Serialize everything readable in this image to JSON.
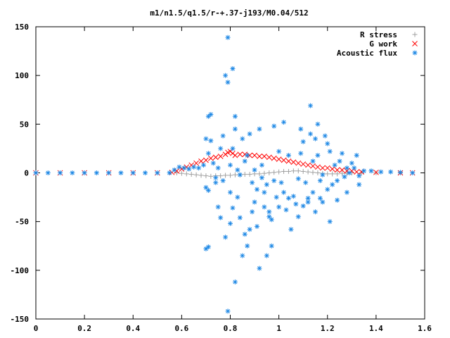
{
  "chart_data": {
    "type": "scatter",
    "title": "m1/n1.5/q1.5/r-+.37-j193/M0.04/512",
    "xlabel": "",
    "ylabel": "",
    "xlim": [
      0,
      1.6
    ],
    "ylim": [
      -150,
      150
    ],
    "x_ticks": [
      "0",
      "0.2",
      "0.4",
      "0.6",
      "0.8",
      "1",
      "1.2",
      "1.4",
      "1.6"
    ],
    "y_ticks": [
      "150",
      "100",
      "50",
      "0",
      "-50",
      "-100",
      "-150"
    ],
    "grid": false,
    "legend_position": "top-right",
    "series": [
      {
        "name": "R stress",
        "marker": "plus",
        "color": "#a0a0a0",
        "points": [
          [
            0.58,
            0
          ],
          [
            0.6,
            -0.5
          ],
          [
            0.62,
            -1
          ],
          [
            0.64,
            -1.5
          ],
          [
            0.66,
            -2
          ],
          [
            0.68,
            -2.5
          ],
          [
            0.7,
            -3
          ],
          [
            0.72,
            -3.5
          ],
          [
            0.74,
            -3
          ],
          [
            0.76,
            -3
          ],
          [
            0.78,
            -2.5
          ],
          [
            0.8,
            -2.5
          ],
          [
            0.82,
            -2
          ],
          [
            0.84,
            -2
          ],
          [
            0.86,
            -1.5
          ],
          [
            0.88,
            -1.5
          ],
          [
            0.9,
            -1
          ],
          [
            0.92,
            -1
          ],
          [
            0.94,
            -0.5
          ],
          [
            0.96,
            0
          ],
          [
            0.98,
            0.5
          ],
          [
            1.0,
            1
          ],
          [
            1.02,
            1.5
          ],
          [
            1.04,
            1.5
          ],
          [
            1.06,
            2
          ],
          [
            1.08,
            2
          ],
          [
            1.1,
            1.5
          ],
          [
            1.12,
            1
          ],
          [
            1.14,
            0.5
          ],
          [
            1.16,
            0
          ],
          [
            1.18,
            -0.5
          ],
          [
            1.2,
            -1
          ],
          [
            1.22,
            -1
          ],
          [
            1.24,
            -1
          ],
          [
            1.26,
            -0.5
          ],
          [
            1.28,
            -0.5
          ],
          [
            1.3,
            0
          ],
          [
            1.34,
            0
          ],
          [
            1.4,
            0
          ],
          [
            1.5,
            0
          ]
        ]
      },
      {
        "name": "G work",
        "marker": "cross",
        "color": "#ff0000",
        "points": [
          [
            0,
            0
          ],
          [
            0.1,
            0
          ],
          [
            0.2,
            0
          ],
          [
            0.3,
            0
          ],
          [
            0.4,
            0
          ],
          [
            0.5,
            0
          ],
          [
            0.56,
            0.5
          ],
          [
            0.58,
            2
          ],
          [
            0.6,
            4
          ],
          [
            0.62,
            6
          ],
          [
            0.64,
            8
          ],
          [
            0.66,
            10
          ],
          [
            0.68,
            12
          ],
          [
            0.7,
            13
          ],
          [
            0.72,
            15
          ],
          [
            0.74,
            16
          ],
          [
            0.76,
            17
          ],
          [
            0.78,
            19
          ],
          [
            0.79,
            21
          ],
          [
            0.8,
            22
          ],
          [
            0.81,
            20
          ],
          [
            0.82,
            18
          ],
          [
            0.84,
            19
          ],
          [
            0.86,
            19
          ],
          [
            0.88,
            18
          ],
          [
            0.9,
            18
          ],
          [
            0.92,
            17
          ],
          [
            0.94,
            17
          ],
          [
            0.96,
            16
          ],
          [
            0.98,
            15
          ],
          [
            1.0,
            14
          ],
          [
            1.02,
            13
          ],
          [
            1.04,
            12
          ],
          [
            1.06,
            11
          ],
          [
            1.08,
            10
          ],
          [
            1.1,
            9
          ],
          [
            1.12,
            8
          ],
          [
            1.14,
            7
          ],
          [
            1.16,
            6
          ],
          [
            1.18,
            5
          ],
          [
            1.2,
            5
          ],
          [
            1.22,
            4
          ],
          [
            1.24,
            3
          ],
          [
            1.26,
            3
          ],
          [
            1.28,
            2
          ],
          [
            1.3,
            2
          ],
          [
            1.32,
            1
          ],
          [
            1.34,
            1
          ],
          [
            1.4,
            0.5
          ],
          [
            1.5,
            0
          ],
          [
            1.55,
            0
          ]
        ]
      },
      {
        "name": "Acoustic flux",
        "marker": "star",
        "color": "#1e88e5",
        "points": [
          [
            0,
            0
          ],
          [
            0.05,
            0
          ],
          [
            0.1,
            0
          ],
          [
            0.15,
            0
          ],
          [
            0.2,
            0
          ],
          [
            0.25,
            0
          ],
          [
            0.3,
            0
          ],
          [
            0.35,
            0
          ],
          [
            0.4,
            0
          ],
          [
            0.45,
            0
          ],
          [
            0.5,
            0
          ],
          [
            0.55,
            0
          ],
          [
            0.57,
            3
          ],
          [
            0.59,
            6
          ],
          [
            0.61,
            5
          ],
          [
            0.63,
            4
          ],
          [
            0.65,
            6
          ],
          [
            0.67,
            5
          ],
          [
            0.69,
            8
          ],
          [
            0.7,
            -15
          ],
          [
            0.71,
            -18
          ],
          [
            0.7,
            -78
          ],
          [
            0.71,
            -76
          ],
          [
            0.7,
            35
          ],
          [
            0.71,
            58
          ],
          [
            0.72,
            60
          ],
          [
            0.71,
            20
          ],
          [
            0.72,
            33
          ],
          [
            0.73,
            10
          ],
          [
            0.74,
            -5
          ],
          [
            0.74,
            -10
          ],
          [
            0.75,
            -35
          ],
          [
            0.75,
            5
          ],
          [
            0.76,
            25
          ],
          [
            0.76,
            -46
          ],
          [
            0.77,
            38
          ],
          [
            0.77,
            -8
          ],
          [
            0.78,
            100
          ],
          [
            0.78,
            -66
          ],
          [
            0.79,
            93
          ],
          [
            0.79,
            139
          ],
          [
            0.79,
            -142
          ],
          [
            0.8,
            -20
          ],
          [
            0.8,
            -52
          ],
          [
            0.8,
            8
          ],
          [
            0.81,
            -36
          ],
          [
            0.81,
            25
          ],
          [
            0.81,
            107
          ],
          [
            0.82,
            58
          ],
          [
            0.82,
            -112
          ],
          [
            0.82,
            45
          ],
          [
            0.83,
            -25
          ],
          [
            0.83,
            3
          ],
          [
            0.84,
            -2
          ],
          [
            0.84,
            -46
          ],
          [
            0.85,
            35
          ],
          [
            0.85,
            -85
          ],
          [
            0.86,
            -63
          ],
          [
            0.86,
            12
          ],
          [
            0.87,
            18
          ],
          [
            0.87,
            -75
          ],
          [
            0.88,
            -58
          ],
          [
            0.88,
            40
          ],
          [
            0.89,
            -10
          ],
          [
            0.89,
            -40
          ],
          [
            0.9,
            -30
          ],
          [
            0.9,
            3
          ],
          [
            0.91,
            -17
          ],
          [
            0.91,
            -55
          ],
          [
            0.92,
            -98
          ],
          [
            0.92,
            45
          ],
          [
            0.93,
            -5
          ],
          [
            0.93,
            8
          ],
          [
            0.94,
            -20
          ],
          [
            0.94,
            -35
          ],
          [
            0.95,
            -12
          ],
          [
            0.95,
            -85
          ],
          [
            0.96,
            -40
          ],
          [
            0.96,
            -45
          ],
          [
            0.97,
            -75
          ],
          [
            0.97,
            -48
          ],
          [
            0.98,
            -8
          ],
          [
            0.98,
            48
          ],
          [
            0.99,
            -25
          ],
          [
            1.0,
            -35
          ],
          [
            1.0,
            22
          ],
          [
            1.01,
            -10
          ],
          [
            1.02,
            -20
          ],
          [
            1.02,
            52
          ],
          [
            1.03,
            -38
          ],
          [
            1.04,
            -26
          ],
          [
            1.04,
            18
          ],
          [
            1.05,
            -58
          ],
          [
            1.06,
            -24
          ],
          [
            1.07,
            -32
          ],
          [
            1.08,
            -45
          ],
          [
            1.08,
            -6
          ],
          [
            1.09,
            45
          ],
          [
            1.09,
            20
          ],
          [
            1.1,
            -34
          ],
          [
            1.1,
            32
          ],
          [
            1.11,
            -10
          ],
          [
            1.12,
            -30
          ],
          [
            1.12,
            -26
          ],
          [
            1.13,
            69
          ],
          [
            1.13,
            40
          ],
          [
            1.14,
            -20
          ],
          [
            1.14,
            12
          ],
          [
            1.15,
            -40
          ],
          [
            1.15,
            35
          ],
          [
            1.16,
            50
          ],
          [
            1.16,
            18
          ],
          [
            1.17,
            -8
          ],
          [
            1.17,
            -26
          ],
          [
            1.18,
            -30
          ],
          [
            1.18,
            -2
          ],
          [
            1.19,
            38
          ],
          [
            1.2,
            -17
          ],
          [
            1.2,
            30
          ],
          [
            1.21,
            22
          ],
          [
            1.21,
            -50
          ],
          [
            1.22,
            -12
          ],
          [
            1.23,
            8
          ],
          [
            1.24,
            -8
          ],
          [
            1.24,
            -28
          ],
          [
            1.25,
            12
          ],
          [
            1.26,
            20
          ],
          [
            1.27,
            -4
          ],
          [
            1.28,
            5
          ],
          [
            1.28,
            -20
          ],
          [
            1.29,
            0
          ],
          [
            1.3,
            10
          ],
          [
            1.31,
            5
          ],
          [
            1.32,
            18
          ],
          [
            1.33,
            -3
          ],
          [
            1.33,
            -12
          ],
          [
            1.35,
            2
          ],
          [
            1.38,
            2
          ],
          [
            1.42,
            1
          ],
          [
            1.46,
            1
          ],
          [
            1.5,
            0.5
          ],
          [
            1.55,
            0
          ]
        ]
      }
    ]
  }
}
